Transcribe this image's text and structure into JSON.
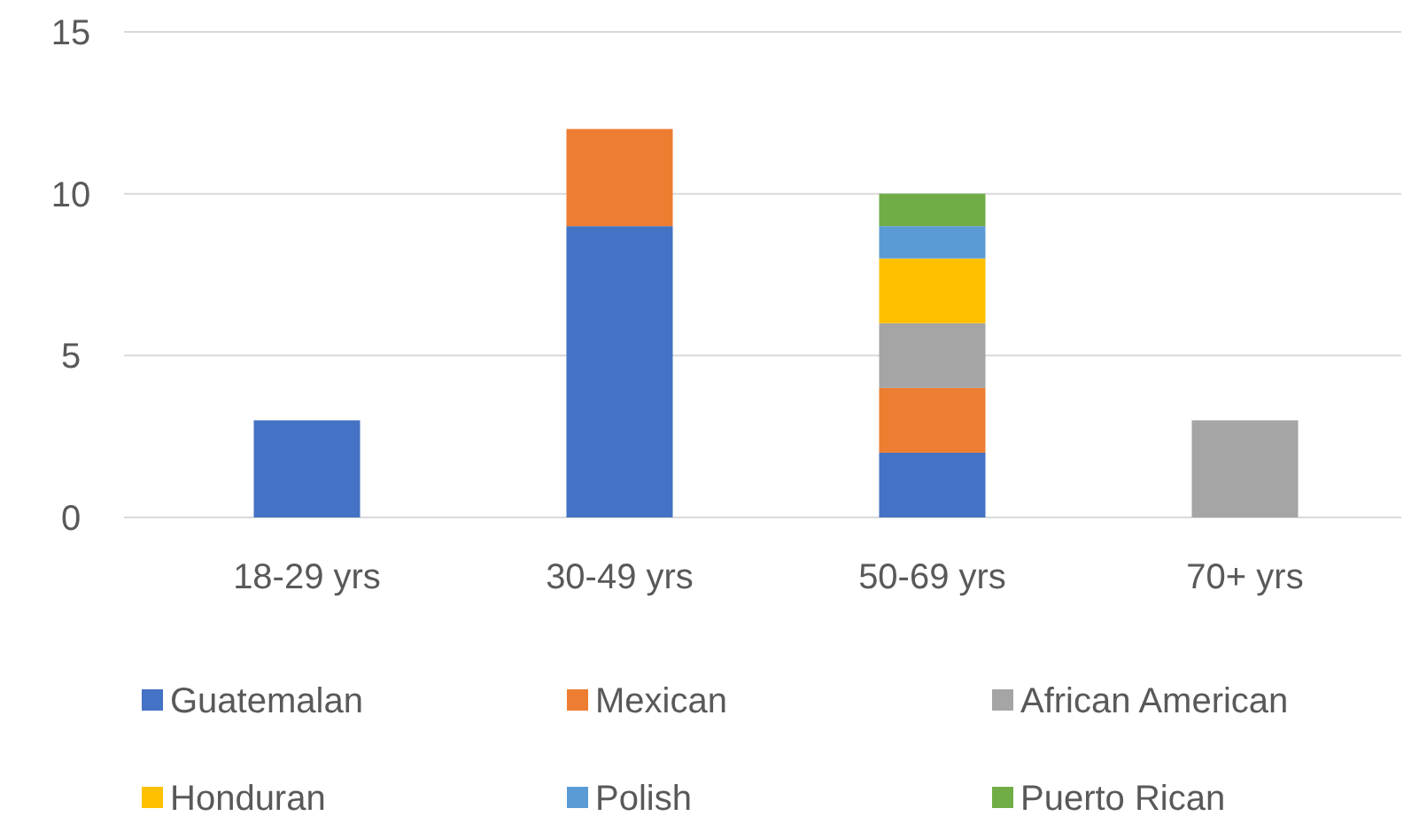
{
  "chart_data": {
    "type": "bar",
    "stacked": true,
    "categories": [
      "18-29 yrs",
      "30-49 yrs",
      "50-69 yrs",
      "70+ yrs"
    ],
    "series": [
      {
        "name": "Guatemalan",
        "color": "#4472c4",
        "values": [
          3,
          9,
          2,
          0
        ]
      },
      {
        "name": "Mexican",
        "color": "#ed7d31",
        "values": [
          0,
          3,
          2,
          0
        ]
      },
      {
        "name": "African American",
        "color": "#a5a5a5",
        "values": [
          0,
          0,
          2,
          3
        ]
      },
      {
        "name": "Honduran",
        "color": "#ffc000",
        "values": [
          0,
          0,
          2,
          0
        ]
      },
      {
        "name": "Polish",
        "color": "#5b9bd5",
        "values": [
          0,
          0,
          1,
          0
        ]
      },
      {
        "name": "Puerto Rican",
        "color": "#70ad47",
        "values": [
          0,
          0,
          1,
          0
        ]
      }
    ],
    "ylim": [
      0,
      15
    ],
    "yticks": [
      0,
      5,
      10,
      15
    ],
    "grid": "y",
    "legend": "bottom"
  }
}
